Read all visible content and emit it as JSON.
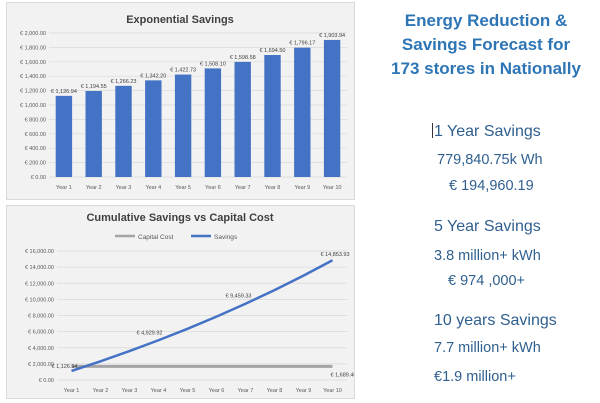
{
  "colors": {
    "bar": "#4472c4",
    "savings_line": "#4472c4",
    "capital_line": "#a5a5a5",
    "headline": "#2e75b6",
    "text": "#2f5f8f"
  },
  "chart_data": [
    {
      "type": "bar",
      "title": "Exponential Savings",
      "categories": [
        "Year 1",
        "Year 2",
        "Year 3",
        "Year 4",
        "Year 5",
        "Year 6",
        "Year 7",
        "Year 8",
        "Year 9",
        "Year 10"
      ],
      "values": [
        1126.94,
        1194.55,
        1266.23,
        1342.2,
        1422.73,
        1508.1,
        1598.58,
        1694.5,
        1796.17,
        1903.94
      ],
      "data_labels": [
        "€ 1,126.94",
        "€ 1,194.55",
        "€ 1,266.23",
        "€ 1,342.20",
        "€ 1,422.73",
        "€ 1,508.10",
        "€ 1,598.58",
        "€ 1,694.50",
        "€ 1,796.17",
        "€ 1,903.94"
      ],
      "ylim": [
        0,
        2000
      ],
      "yticks": [
        0,
        200,
        400,
        600,
        800,
        1000,
        1200,
        1400,
        1600,
        1800,
        2000
      ],
      "ytick_labels": [
        "€ 0.00",
        "€ 200.00",
        "€ 400.00",
        "€ 600.00",
        "€ 800.00",
        "€ 1,000.00",
        "€ 1,200.00",
        "€ 1,400.00",
        "€ 1,600.00",
        "€ 1,800.00",
        "€ 2,000.00"
      ],
      "grid": true
    },
    {
      "type": "line",
      "title": "Cumulative Savings vs Capital Cost",
      "categories": [
        "Year 1",
        "Year 2",
        "Year 3",
        "Year 4",
        "Year 5",
        "Year 6",
        "Year 7",
        "Year 8",
        "Year 9",
        "Year 10"
      ],
      "series": [
        {
          "name": "Capital Cost",
          "color": "#a5a5a5",
          "values": [
            1689.4,
            1689.4,
            1689.4,
            1689.4,
            1689.4,
            1689.4,
            1689.4,
            1689.4,
            1689.4,
            1689.4
          ]
        },
        {
          "name": "Savings",
          "color": "#4472c4",
          "values": [
            1126.94,
            2321.49,
            3587.72,
            4929.92,
            6352.65,
            7860.75,
            9459.33,
            11153.83,
            12950.0,
            14853.93
          ]
        }
      ],
      "annotations": [
        {
          "series": 1,
          "index": 0,
          "text": "€ 1,126.94"
        },
        {
          "series": 1,
          "index": 3,
          "text": "€ 4,929.92"
        },
        {
          "series": 1,
          "index": 6,
          "text": "€ 9,459.33"
        },
        {
          "series": 1,
          "index": 9,
          "text": "€ 14,853.93"
        },
        {
          "series": 0,
          "index": 9,
          "text": "€ 1,689.40"
        }
      ],
      "ylim": [
        0,
        16000
      ],
      "yticks": [
        0,
        2000,
        4000,
        6000,
        8000,
        10000,
        12000,
        14000,
        16000
      ],
      "ytick_labels": [
        "€ 0.00",
        "€ 2,000.00",
        "€ 4,000.00",
        "€ 6,000.00",
        "€ 8,000.00",
        "€ 10,000.00",
        "€ 12,000.00",
        "€ 14,000.00",
        "€ 16,000.00"
      ],
      "legend_position": "top-center",
      "grid": true
    }
  ],
  "summary": {
    "headline": [
      "Energy Reduction &",
      "Savings Forecast for",
      "173 stores in Nationally"
    ],
    "one_year": {
      "title": "1 Year Savings",
      "kwh": "779,840.75k Wh",
      "eur": "€ 194,960.19"
    },
    "five_year": {
      "title": "5 Year Savings",
      "kwh": "3.8 million+ kWh",
      "eur": "€ 974 ,000+"
    },
    "ten_year": {
      "title": "10 years Savings",
      "kwh": "7.7 million+ kWh",
      "eur": "€1.9 million+"
    }
  }
}
